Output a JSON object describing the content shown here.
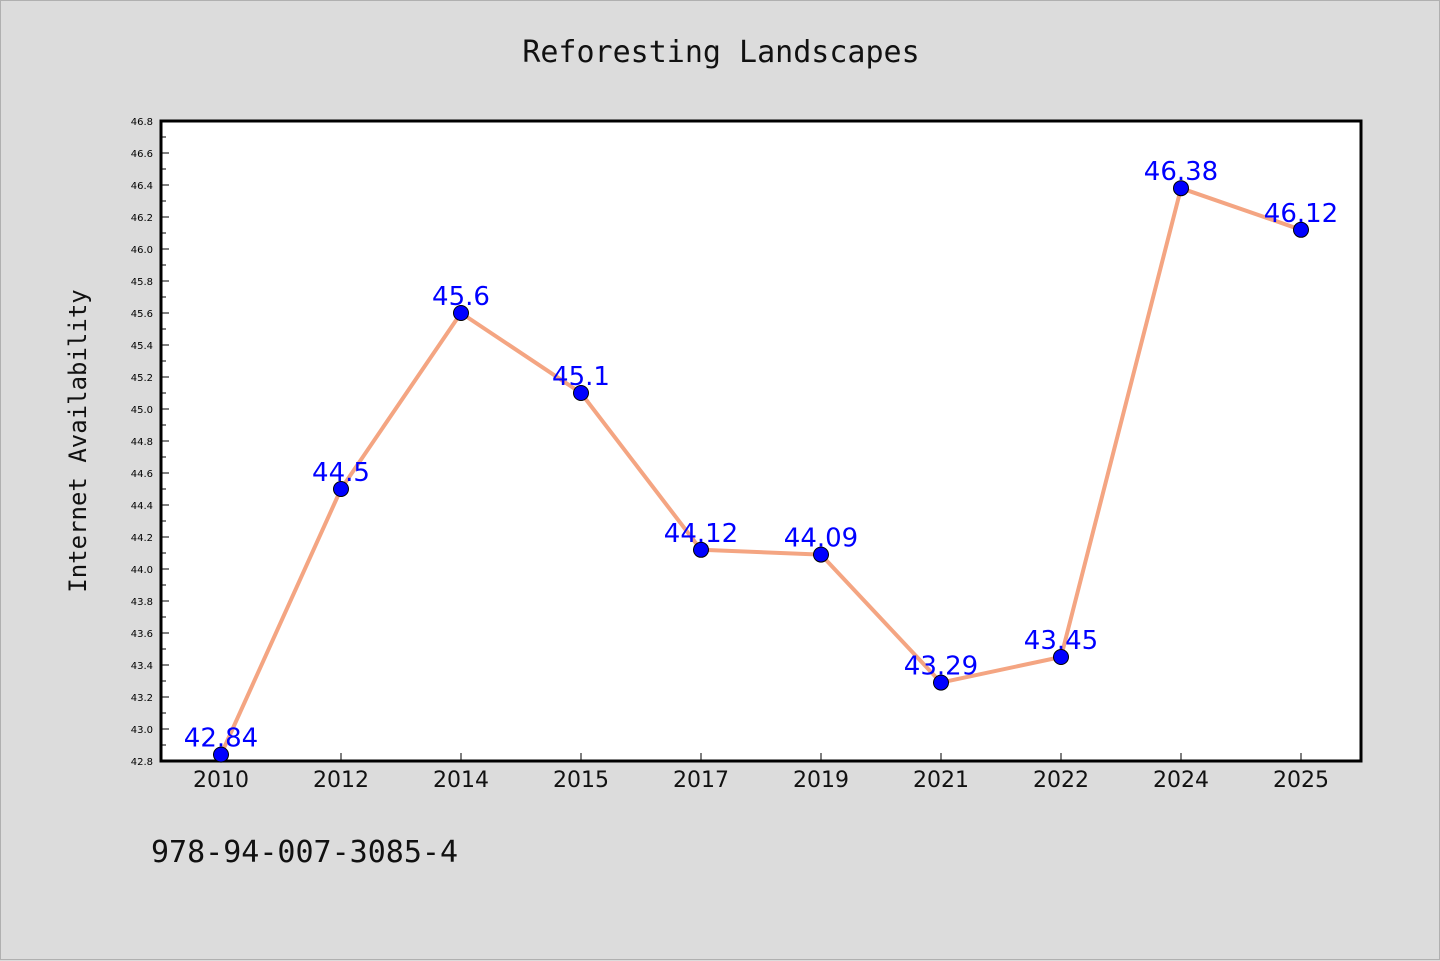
{
  "title": "Reforesting Landscapes",
  "footer_code": "978-94-007-3085-4",
  "chart_data": {
    "type": "line",
    "title": "Reforesting Landscapes",
    "xlabel": "",
    "ylabel": "Internet Availability",
    "categories": [
      "2010",
      "2012",
      "2014",
      "2015",
      "2017",
      "2019",
      "2021",
      "2022",
      "2024",
      "2025"
    ],
    "values": [
      42.84,
      44.5,
      45.6,
      45.1,
      44.12,
      44.09,
      43.29,
      43.45,
      46.38,
      46.12
    ],
    "data_labels": [
      "42.84",
      "44.5",
      "45.6",
      "45.1",
      "44.12",
      "44.09",
      "43.29",
      "43.45",
      "46.38",
      "46.12"
    ],
    "ylim": [
      42.8,
      46.8
    ],
    "ytick_labels": [
      "42.8",
      "43.0",
      "43.2",
      "43.4",
      "43.6",
      "43.8",
      "44.0",
      "44.2",
      "44.4",
      "44.6",
      "44.8",
      "45.0",
      "45.2",
      "45.4",
      "45.6",
      "45.8",
      "46.0",
      "46.2",
      "46.4",
      "46.6",
      "46.8"
    ],
    "grid": false,
    "colors": {
      "line": "#f4a582",
      "marker": "#0000ff",
      "label": "#0000ff"
    }
  }
}
